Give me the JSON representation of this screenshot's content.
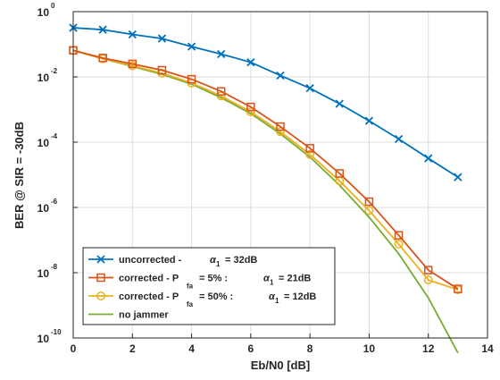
{
  "chart_data": {
    "type": "line",
    "xlabel": "Eb/N0 [dB]",
    "ylabel": "BER @ SIR = -30dB",
    "xlim": [
      0,
      14
    ],
    "ylim": [
      1e-10,
      1
    ],
    "yscale": "log",
    "grid": true,
    "legend_position": "bottom-left",
    "x_ticks": [
      0,
      2,
      4,
      6,
      8,
      10,
      12,
      14
    ],
    "x_tick_labels": [
      "0",
      "2",
      "4",
      "6",
      "8",
      "10",
      "12",
      "14"
    ],
    "y_ticks": [
      {
        "value": 1e-10,
        "base": "10",
        "exp": "-10"
      },
      {
        "value": 1e-08,
        "base": "10",
        "exp": "-8"
      },
      {
        "value": 1e-06,
        "base": "10",
        "exp": "-6"
      },
      {
        "value": 0.0001,
        "base": "10",
        "exp": "-4"
      },
      {
        "value": 0.01,
        "base": "10",
        "exp": "-2"
      },
      {
        "value": 1,
        "base": "10",
        "exp": "0"
      }
    ],
    "x": [
      0,
      1,
      2,
      3,
      4,
      5,
      6,
      7,
      8,
      9,
      10,
      11,
      12,
      13
    ],
    "series": [
      {
        "legend": {
          "main": "uncorrected -",
          "sub": "",
          "pct": "",
          "alpha": "α",
          "alpha_sub": "1",
          "value": "= 32dB"
        },
        "color": "#0072BD",
        "marker": "x",
        "values": [
          0.32,
          0.28,
          0.2,
          0.15,
          0.085,
          0.05,
          0.028,
          0.011,
          0.0045,
          0.0015,
          0.00045,
          0.000125,
          3.2e-05,
          8.5e-06
        ]
      },
      {
        "legend": {
          "main": "corrected - P",
          "sub": "fa",
          "pct": "= 5% :",
          "alpha": "α",
          "alpha_sub": "1",
          "value": "= 21dB"
        },
        "color": "#D95319",
        "marker": "square",
        "values": [
          0.065,
          0.038,
          0.025,
          0.016,
          0.0085,
          0.0036,
          0.0012,
          0.0003,
          6.5e-05,
          1.1e-05,
          1.5e-06,
          1.4e-07,
          1.2e-08,
          3.2e-09
        ]
      },
      {
        "legend": {
          "main": "corrected - P",
          "sub": "fa",
          "pct": "= 50% :",
          "alpha": "α",
          "alpha_sub": "1",
          "value": "= 12dB"
        },
        "color": "#EDB120",
        "marker": "circle",
        "values": [
          0.065,
          0.036,
          0.022,
          0.013,
          0.0065,
          0.0026,
          0.00085,
          0.00021,
          4.2e-05,
          6.5e-06,
          8e-07,
          7.5e-08,
          6e-09,
          3e-09
        ]
      },
      {
        "legend": {
          "main": "no jammer",
          "sub": "",
          "pct": "",
          "alpha": "",
          "alpha_sub": "",
          "value": ""
        },
        "color": "#77AC30",
        "marker": "none",
        "values": [
          0.065,
          0.036,
          0.021,
          0.012,
          0.006,
          0.0023,
          0.00075,
          0.00018,
          3.5e-05,
          4.8e-06,
          5e-07,
          3.8e-08,
          1.7e-09,
          3.5e-11
        ]
      }
    ]
  }
}
